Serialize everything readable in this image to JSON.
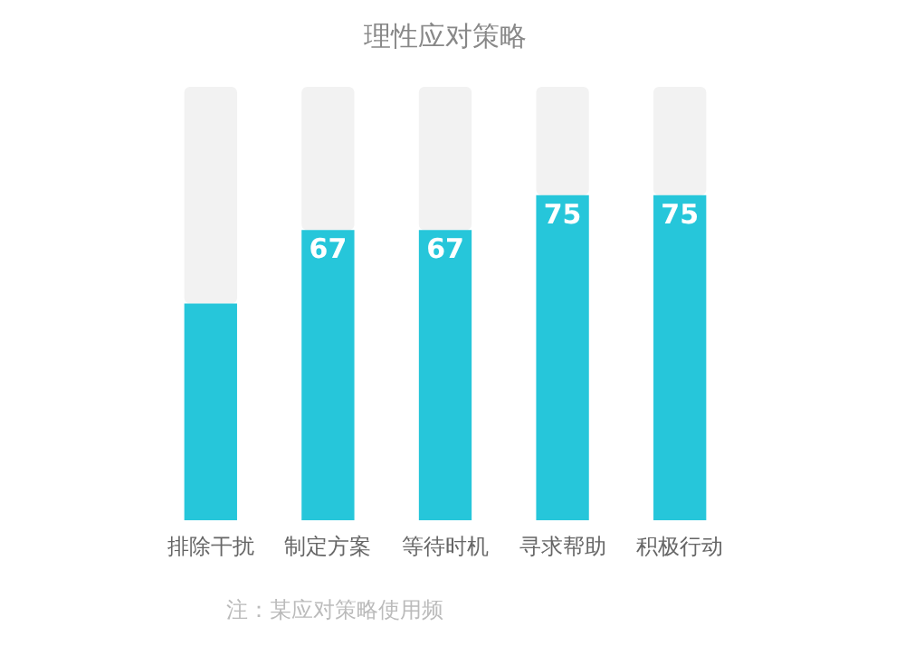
{
  "chart_data": {
    "type": "bar",
    "title": "理性应对策略",
    "categories": [
      "排除干扰",
      "制定方案",
      "等待时机",
      "寻求帮助",
      "积极行动"
    ],
    "stacked": true,
    "series": [
      {
        "color": "#26c6da",
        "values": [
          50,
          67,
          67,
          75,
          75
        ],
        "value_labels": [
          null,
          "67",
          "67",
          "75",
          "75"
        ]
      },
      {
        "color": "#f2f2f2",
        "values": [
          50,
          33,
          33,
          25,
          25
        ]
      }
    ],
    "ylim": [
      0,
      100
    ],
    "tick_labels": "x",
    "grid": false,
    "legend": false,
    "annotations": [
      "注：某应对策略使用频"
    ]
  }
}
